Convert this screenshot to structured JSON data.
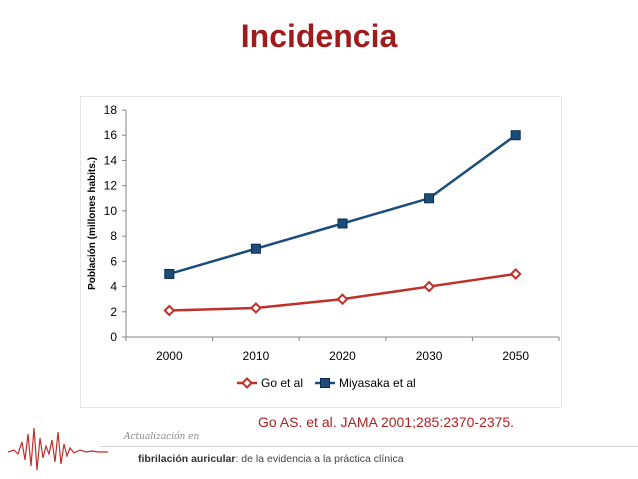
{
  "page": {
    "title": "Incidencia"
  },
  "chart_data": {
    "type": "line",
    "title": "",
    "xlabel": "",
    "ylabel": "Población (millones habits.)",
    "categories": [
      "2000",
      "2010",
      "2020",
      "2030",
      "2050"
    ],
    "ylim": [
      0,
      18
    ],
    "yticks": [
      0,
      2,
      4,
      6,
      8,
      10,
      12,
      14,
      16,
      18
    ],
    "grid": false,
    "legend_position": "bottom",
    "series": [
      {
        "name": "Go et al",
        "values": [
          2.1,
          2.3,
          3.0,
          4.0,
          5.0
        ],
        "color": "#c0302a",
        "marker": "diamond"
      },
      {
        "name": "Miyasaka  et al",
        "values": [
          5,
          7,
          9,
          11,
          16
        ],
        "color": "#1c4d7a",
        "marker": "square"
      }
    ]
  },
  "citation": "Go AS. et al. JAMA 2001;285:2370-2375.",
  "footer": {
    "brand": "Actualización en",
    "subtitle_bold": "fibrilación auricular",
    "subtitle_rest": ": de la evidencia a la práctica clínica"
  },
  "colors": {
    "title": "#a01c1c",
    "citation": "#b02020",
    "ecg": "#c0302a"
  }
}
